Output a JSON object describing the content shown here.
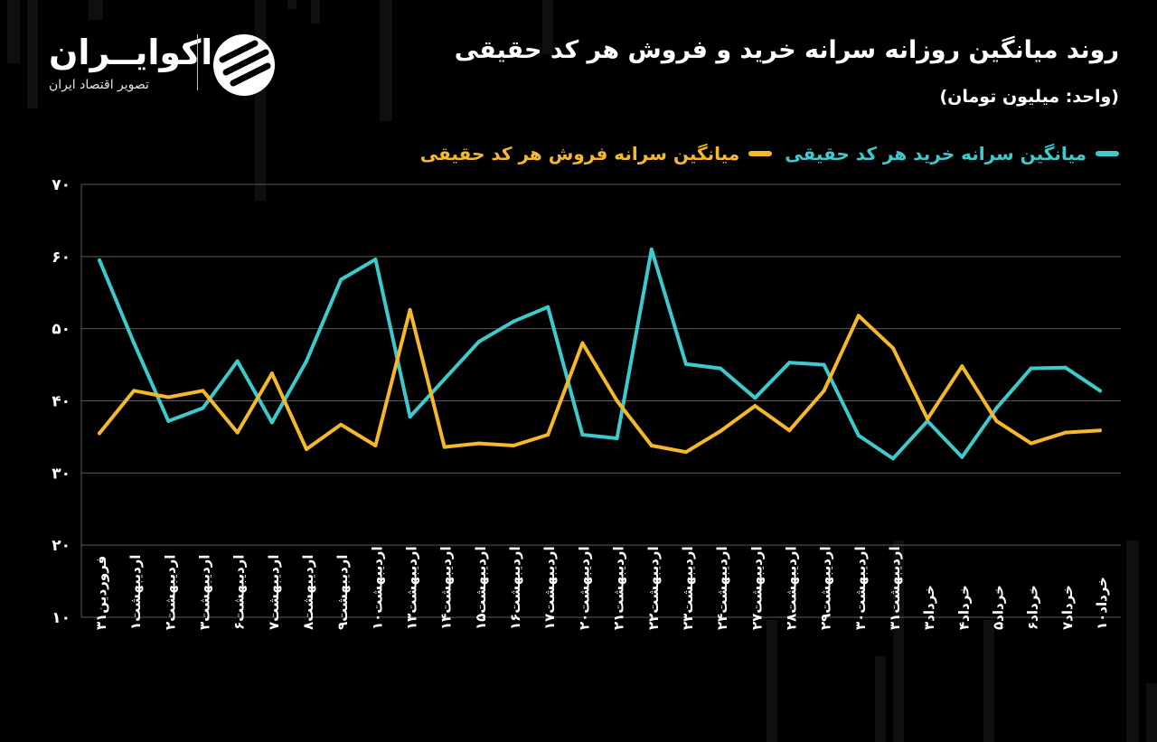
{
  "header": {
    "title": "روند میانگین روزانه سرانه خرید و فروش هر کد حقیقی",
    "subtitle": "(واحد: میلیون تومان)"
  },
  "logo": {
    "name": "اکوایــران",
    "tagline": "تصویر اقتصاد ایران"
  },
  "colors": {
    "buy": "#3ec9cd",
    "sell": "#f5b82a",
    "grid": "#5a5a5a",
    "background": "#000000"
  },
  "chart_data": {
    "type": "line",
    "title": "روند میانگین روزانه سرانه خرید و فروش هر کد حقیقی",
    "ylabel": "(واحد: میلیون تومان)",
    "ylim": [
      10,
      70
    ],
    "yticks": [
      "۱۰",
      "۲۰",
      "۳۰",
      "۴۰",
      "۵۰",
      "۶۰",
      "۷۰"
    ],
    "grid": true,
    "legend_position": "top-right",
    "categories": [
      "فروردین۳۱",
      "اردیبهشت۱",
      "اردیبهشت۲",
      "اردیبهشت۳",
      "اردیبهشت۶",
      "اردیبهشت۷",
      "اردیبهشت۸",
      "اردیبهشت۹",
      "اردیبهشت۱۰",
      "اردیبهشت۱۳",
      "اردیبهشت۱۴",
      "اردیبهشت۱۵",
      "اردیبهشت۱۶",
      "اردیبهشت۱۷",
      "اردیبهشت۲۰",
      "اردیبهشت۲۱",
      "اردیبهشت۲۲",
      "اردیبهشت۲۳",
      "اردیبهشت۲۴",
      "اردیبهشت۲۷",
      "اردیبهشت۲۸",
      "اردیبهشت۲۹",
      "اردیبهشت۳۰",
      "اردیبهشت۳۱",
      "خرداد۳",
      "خرداد۴",
      "خرداد۵",
      "خرداد۶",
      "خرداد۷",
      "خرداد۱۰"
    ],
    "series": [
      {
        "name": "میانگین سرانه خرید هر کد حقیقی",
        "color": "#3ec9cd",
        "values": [
          59.5,
          48.0,
          37.2,
          39.0,
          45.5,
          37.0,
          45.5,
          56.8,
          59.6,
          37.8,
          43.0,
          48.2,
          51.0,
          53.0,
          35.3,
          34.8,
          61.0,
          45.1,
          44.5,
          40.4,
          45.3,
          45.0,
          35.2,
          32.0,
          37.2,
          32.2,
          39.0,
          44.5,
          44.6,
          41.4
        ]
      },
      {
        "name": "میانگین سرانه فروش هر کد حقیقی",
        "color": "#f5b82a",
        "values": [
          35.5,
          41.4,
          40.5,
          41.4,
          35.6,
          43.8,
          33.3,
          36.7,
          33.8,
          52.6,
          33.6,
          34.1,
          33.8,
          35.3,
          48.0,
          40.0,
          33.8,
          32.9,
          35.8,
          39.3,
          35.9,
          41.4,
          51.8,
          47.3,
          37.5,
          44.8,
          37.2,
          34.1,
          35.6,
          35.9
        ]
      }
    ]
  }
}
